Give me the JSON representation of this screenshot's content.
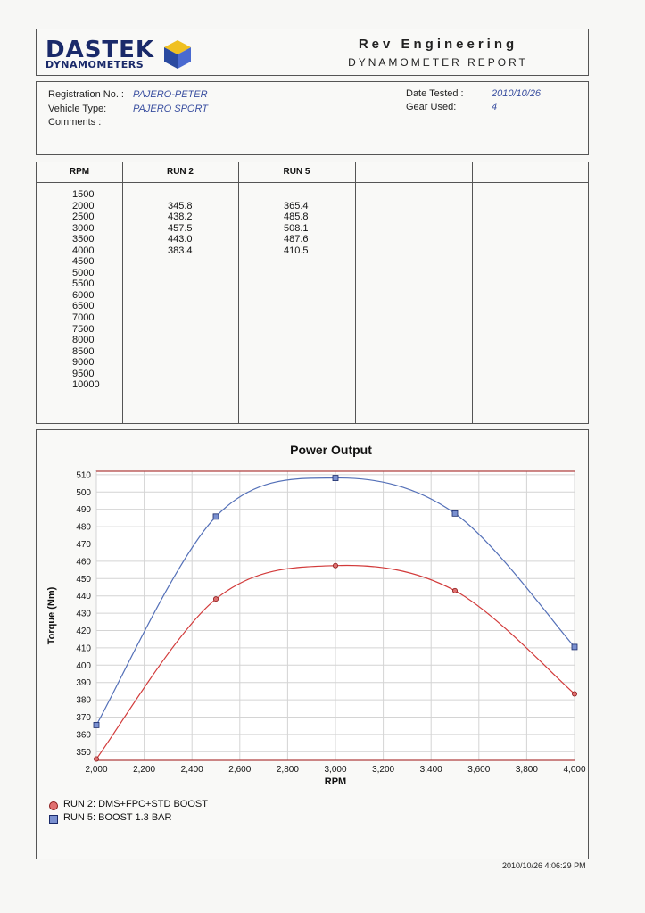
{
  "header": {
    "logo_line1": "DASTEK",
    "logo_line2": "DYNAMOMETERS",
    "company": "Rev Engineering",
    "report_title": "DYNAMOMETER REPORT"
  },
  "info": {
    "registration_label": "Registration No. :",
    "registration_value": "PAJERO-PETER",
    "vehicle_label": "Vehicle Type:",
    "vehicle_value": "PAJERO SPORT",
    "comments_label": "Comments :",
    "date_label": "Date Tested :",
    "date_value": "2010/10/26",
    "gear_label": "Gear Used:",
    "gear_value": "4"
  },
  "table": {
    "headers": [
      "RPM",
      "RUN 2",
      "RUN 5"
    ],
    "rpm": [
      "1500",
      "2000",
      "2500",
      "3000",
      "3500",
      "4000",
      "4500",
      "5000",
      "5500",
      "6000",
      "6500",
      "7000",
      "7500",
      "8000",
      "8500",
      "9000",
      "9500",
      "10000"
    ],
    "run2": [
      "",
      "345.8",
      "438.2",
      "457.5",
      "443.0",
      "383.4"
    ],
    "run5": [
      "",
      "365.4",
      "485.8",
      "508.1",
      "487.6",
      "410.5"
    ]
  },
  "chart_data": {
    "type": "line",
    "title": "Power Output",
    "xlabel": "RPM",
    "ylabel": "Torque (Nm)",
    "xlim": [
      2000,
      4000
    ],
    "ylim": [
      345,
      512
    ],
    "x_ticks": [
      "2,000",
      "2,200",
      "2,400",
      "2,600",
      "2,800",
      "3,000",
      "3,200",
      "3,400",
      "3,600",
      "3,800",
      "4,000"
    ],
    "y_ticks": [
      350,
      360,
      370,
      380,
      390,
      400,
      410,
      420,
      430,
      440,
      450,
      460,
      470,
      480,
      490,
      500,
      510
    ],
    "x": [
      2000,
      2500,
      3000,
      3500,
      4000
    ],
    "series": [
      {
        "name": "RUN 2: DMS+FPC+STD BOOST",
        "values": [
          345.8,
          438.2,
          457.5,
          443.0,
          383.4
        ],
        "color": "#d23a3a",
        "marker": "circle"
      },
      {
        "name": "RUN 5: BOOST 1.3 BAR",
        "values": [
          365.4,
          485.8,
          508.1,
          487.6,
          410.5
        ],
        "color": "#5470b8",
        "marker": "square"
      }
    ]
  },
  "footer": {
    "timestamp": "2010/10/26 4:06:29 PM"
  }
}
